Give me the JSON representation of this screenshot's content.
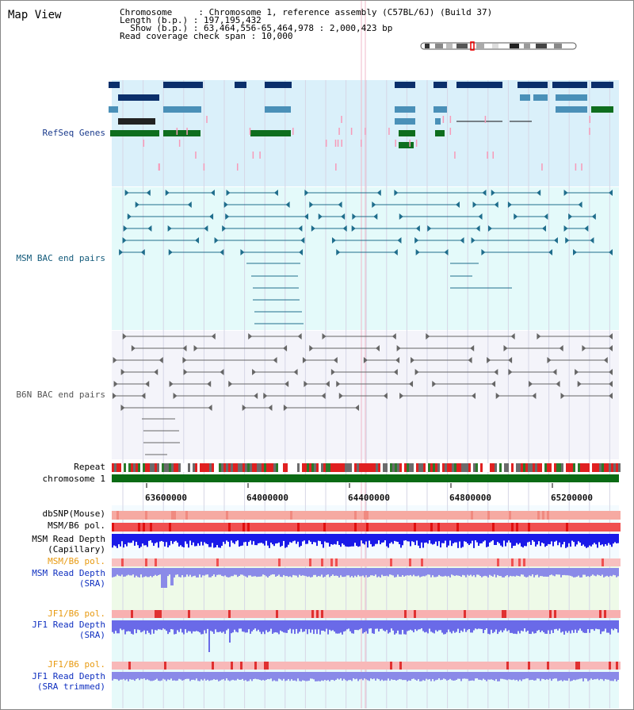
{
  "title": "Map View",
  "info": {
    "chromosome": "Chromosome     : Chromosome 1, reference assembly (C57BL/6J) (Build 37)",
    "length": "Length (b.p.) : 197,195,432",
    "show": "  Show (b.p.) : 63,464,556-65,464,978 : 2,000,423 bp",
    "coverage": "Read coverage check span : 10,000"
  },
  "tracks": {
    "refseq": "RefSeq Genes",
    "msm_bac": "MSM BAC end pairs",
    "b6n_bac": "B6N BAC end pairs",
    "repeat": "Repeat",
    "chromosome": "chromosome 1",
    "dbsnp": "dbSNP(Mouse)",
    "msm_b6_pol": "MSM/B6 pol.",
    "msm_read_depth_cap_1": "MSM Read Depth",
    "msm_read_depth_cap_2": "(Capillary)",
    "msm_b6_pol_2": "MSM/B6 pol.",
    "msm_read_depth_sra_1": "MSM Read Depth",
    "msm_read_depth_sra_2": "(SRA)",
    "jf1_b6_pol": "JF1/B6 pol.",
    "jf1_read_depth_sra_1": "JF1 Read Depth",
    "jf1_read_depth_sra_2": "(SRA)",
    "jf1_b6_pol_2": "JF1/B6 pol.",
    "jf1_read_depth_trim_1": "JF1 Read Depth",
    "jf1_read_depth_trim_2": "(SRA trimmed)"
  },
  "axis_ticks": [
    "63600000",
    "64000000",
    "64400000",
    "64800000",
    "65200000"
  ],
  "colors": {
    "refseq_bg": "#daf0fa",
    "msm_bg": "#e4fafa",
    "b6n_bg": "#f4f4fa",
    "navy_gene": "#0b2f6b",
    "blue_gene": "#4a90b8",
    "green_gene": "#0e6e1e",
    "chromosome_bar": "#0a6b14",
    "snp_light": "#f6a8a0",
    "depth_blue": "#1a1ae8",
    "depth_lavender": "#8a8ae8"
  }
}
